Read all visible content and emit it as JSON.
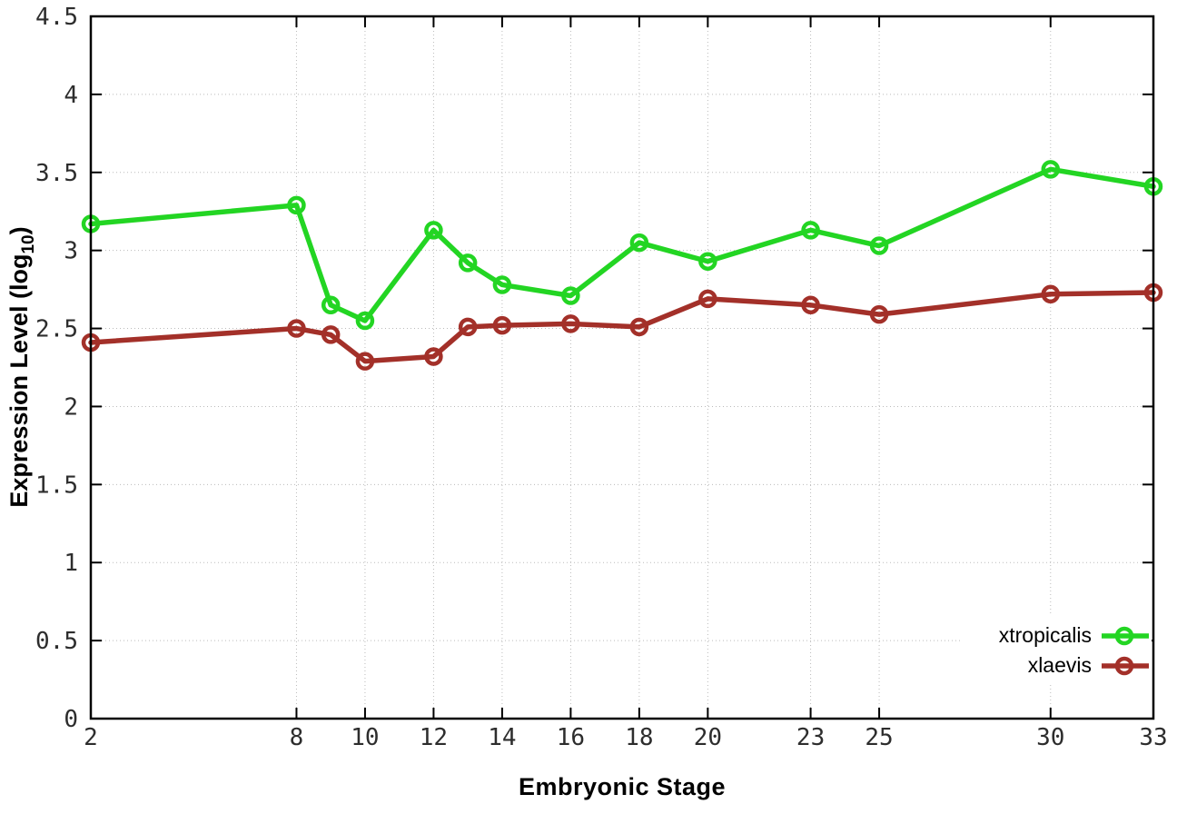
{
  "figure": {
    "background": "#ffffff",
    "xlabel": "Embryonic Stage",
    "ylabel": {
      "text": "Expression Level (log10)",
      "prefix": "Expression Level (log",
      "subscript": "10",
      "suffix": ")"
    }
  },
  "chart_data": {
    "type": "line",
    "title": "",
    "xlabel": "Embryonic Stage",
    "ylabel": "Expression Level (log10)",
    "x": [
      2,
      8,
      9,
      10,
      12,
      13,
      14,
      16,
      18,
      20,
      23,
      25,
      30,
      33
    ],
    "series": [
      {
        "name": "xtropicalis",
        "color": "#23d523",
        "values": [
          3.17,
          3.29,
          2.65,
          2.55,
          3.13,
          2.92,
          2.78,
          2.71,
          3.05,
          2.93,
          3.13,
          3.03,
          3.52,
          3.41
        ]
      },
      {
        "name": "xlaevis",
        "color": "#a33029",
        "values": [
          2.41,
          2.5,
          2.46,
          2.29,
          2.32,
          2.51,
          2.52,
          2.53,
          2.51,
          2.69,
          2.65,
          2.59,
          2.72,
          2.73
        ]
      }
    ],
    "xlim": [
      2,
      33
    ],
    "ylim": [
      0,
      4.5
    ],
    "xticks": [
      2,
      8,
      10,
      12,
      14,
      16,
      18,
      20,
      23,
      25,
      30,
      33
    ],
    "yticks": [
      0,
      0.5,
      1,
      1.5,
      2,
      2.5,
      3,
      3.5,
      4,
      4.5
    ],
    "grid": true,
    "grid_style": "dotted",
    "legend_position": "bottom-right",
    "marker": "open-circle",
    "line_width": 5.5,
    "grid_color": "#bbbbbb",
    "axis_color": "#000000"
  }
}
